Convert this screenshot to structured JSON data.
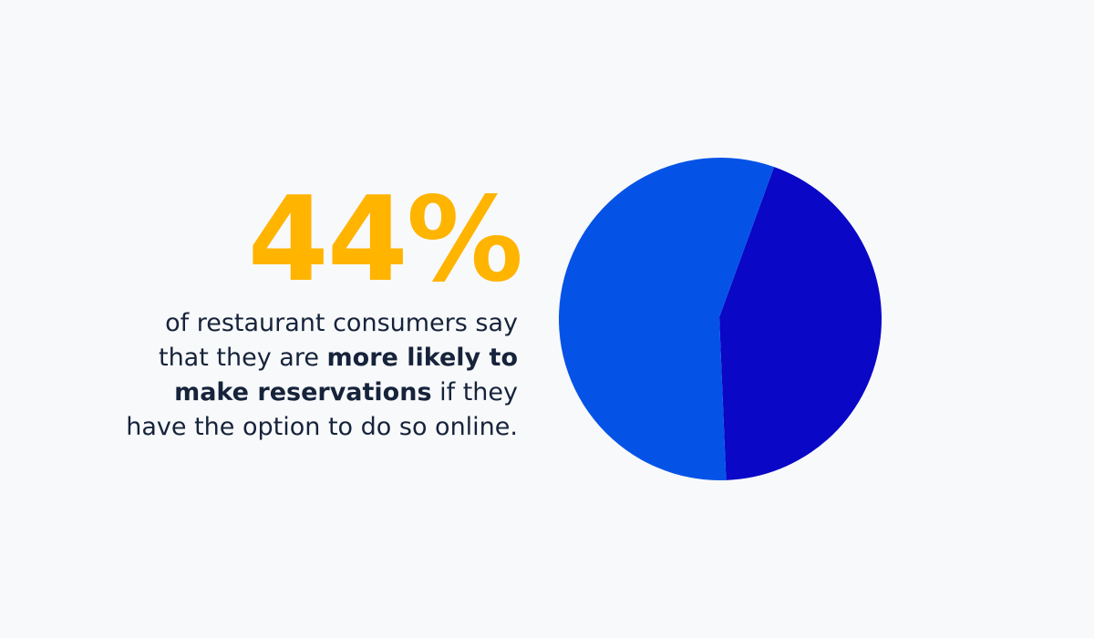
{
  "stat": {
    "value": "44%",
    "caption_parts": {
      "pre": "of restaurant consumers say that they are ",
      "bold": "more likely to make reservations",
      "post": " if they have the option to do so online."
    }
  },
  "colors": {
    "stat": "#ffb400",
    "slice_highlight": "#0a07c6",
    "slice_rest": "#0553e6",
    "text": "#16233a",
    "background": "#f8f9fb"
  },
  "chart_data": {
    "type": "pie",
    "values": [
      44,
      56
    ],
    "colors": [
      "#0a07c6",
      "#0553e6"
    ],
    "start_angle_deg": 19.5
  }
}
